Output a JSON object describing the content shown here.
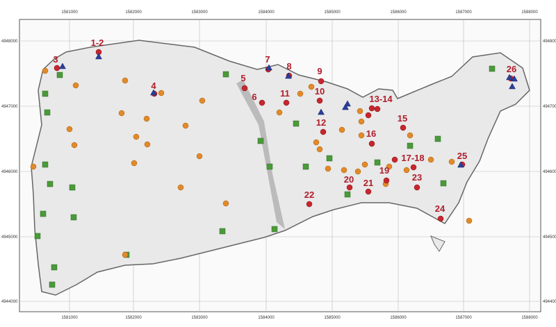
{
  "map": {
    "x_ticks": [
      "1581000",
      "1582000",
      "1583000",
      "1584000",
      "1585000",
      "1586000",
      "1587000",
      "1588000"
    ],
    "y_ticks": [
      "4948000",
      "4947000",
      "4946000",
      "4945000",
      "4944000"
    ],
    "sites": [
      "1-2",
      "3",
      "4",
      "5",
      "6",
      "7",
      "8",
      "9",
      "10",
      "11",
      "12",
      "13-14",
      "15",
      "16",
      "17-18",
      "19",
      "20",
      "21",
      "22",
      "23",
      "24",
      "25",
      "26"
    ]
  }
}
